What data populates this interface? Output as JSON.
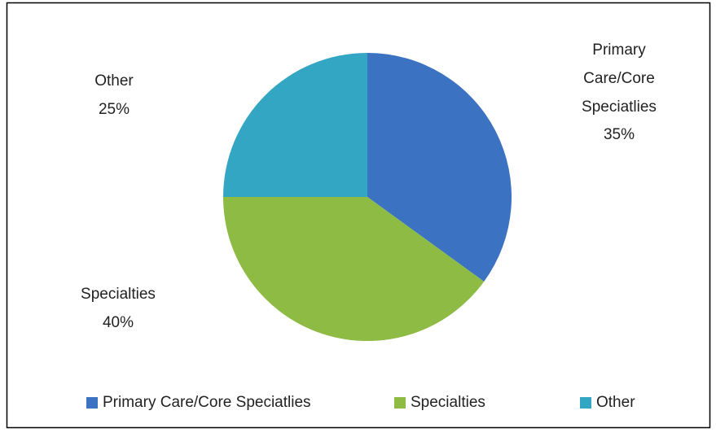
{
  "chart_data": {
    "type": "pie",
    "categories": [
      "Primary Care/Core Speciatlies",
      "Specialties",
      "Other"
    ],
    "values": [
      35,
      40,
      25
    ],
    "value_labels": [
      "35%",
      "40%",
      "25%"
    ],
    "colors": [
      "#3b72c2",
      "#8dbb44",
      "#33a6c4"
    ],
    "legend": "bottom"
  }
}
